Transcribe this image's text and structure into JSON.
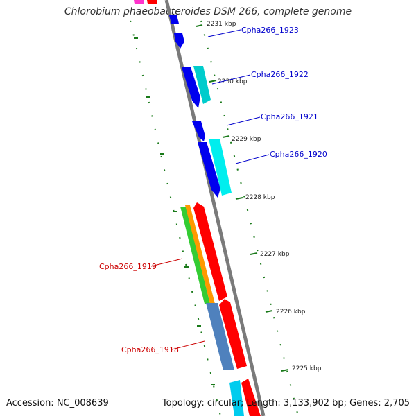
{
  "header": {
    "title": "Chlorobium phaeobacteroides DSM 266, complete genome"
  },
  "footer": {
    "accession": "Accession: NC_008639",
    "stats": "Topology: circular; Length: 3,133,902 bp; Genes: 2,705"
  },
  "scale": {
    "ticks": [
      "2231 kbp",
      "2230 kbp",
      "2229 kbp",
      "2228 kbp",
      "2227 kbp",
      "2226 kbp",
      "2225 kbp"
    ]
  },
  "genes": {
    "labels": [
      {
        "text": "Cpha266_1923",
        "color": "#0000cc"
      },
      {
        "text": "Cpha266_1922",
        "color": "#0000cc"
      },
      {
        "text": "Cpha266_1921",
        "color": "#0000cc"
      },
      {
        "text": "Cpha266_1920",
        "color": "#0000cc"
      },
      {
        "text": "Cpha266_1919",
        "color": "#cc0000"
      },
      {
        "text": "Cpha266_1918",
        "color": "#cc0000"
      }
    ]
  },
  "colors": {
    "backbone": "#888888",
    "scale_dots": "#1a7a1a",
    "blue": "#0000ee",
    "cyan": "#00cccc",
    "red": "#ff0000",
    "green": "#33cc33",
    "orange": "#ff9900",
    "steelblue": "#4f81bd",
    "magenta": "#ff33cc"
  }
}
